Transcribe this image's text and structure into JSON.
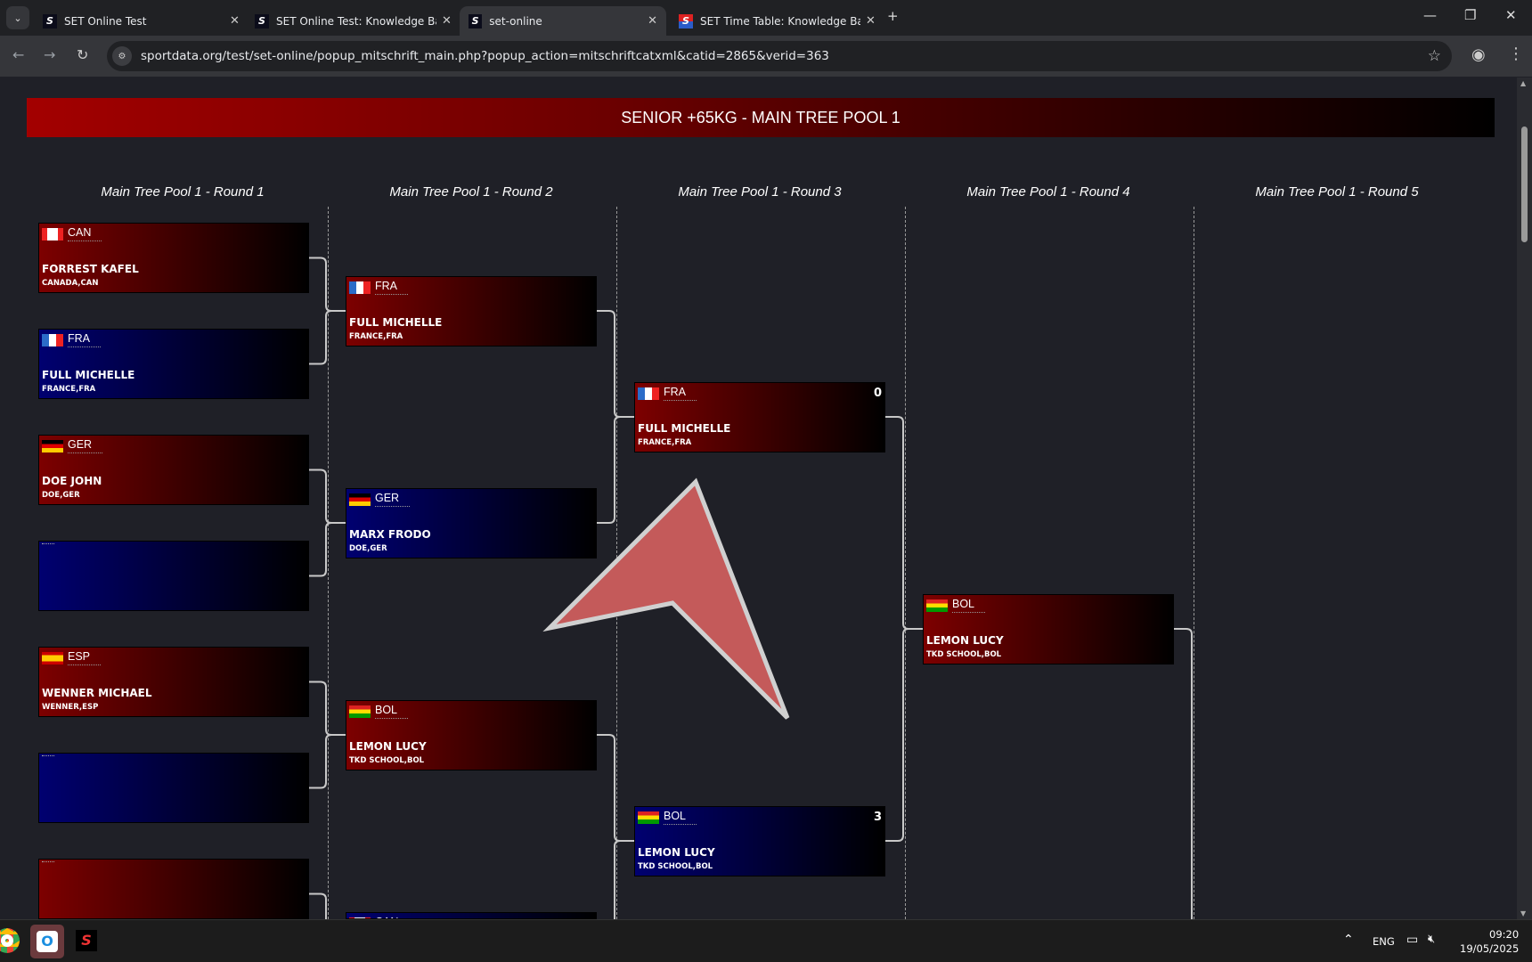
{
  "browser": {
    "tabs": [
      {
        "title": "SET Online Test",
        "active": false
      },
      {
        "title": "SET Online Test: Knowledge Base",
        "active": false
      },
      {
        "title": "set-online",
        "active": true
      },
      {
        "title": "SET Time Table: Knowledge Base",
        "active": false
      }
    ],
    "url": "sportdata.org/test/set-online/popup_mitschrift_main.php?popup_action=mitschriftcatxml&catid=2865&verid=363"
  },
  "page": {
    "title": "SENIOR +65KG - MAIN TREE POOL 1",
    "rounds": [
      "Main Tree Pool 1 - Round 1",
      "Main Tree Pool 1 - Round 2",
      "Main Tree Pool 1 - Round 3",
      "Main Tree Pool 1 - Round 4",
      "Main Tree Pool 1 - Round 5"
    ],
    "colors": {
      "red_corner": "#7d0000",
      "blue_corner": "#000070",
      "background": "#1f2027"
    },
    "matches": [
      [
        {
          "color": "red",
          "code": "CAN",
          "name": "FORREST KAFEL",
          "club": "CANADA,CAN",
          "score": ""
        },
        {
          "color": "blue",
          "code": "FRA",
          "name": "FULL MICHELLE",
          "club": "FRANCE,FRA",
          "score": ""
        },
        {
          "color": "red",
          "code": "GER",
          "name": "DOE JOHN",
          "club": "DOE,GER",
          "score": ""
        },
        {
          "color": "blue",
          "code": "",
          "name": "",
          "club": "",
          "score": ""
        },
        {
          "color": "red",
          "code": "ESP",
          "name": "WENNER MICHAEL",
          "club": "WENNER,ESP",
          "score": ""
        },
        {
          "color": "blue",
          "code": "",
          "name": "",
          "club": "",
          "score": ""
        },
        {
          "color": "red",
          "code": "",
          "name": "",
          "club": "",
          "score": ""
        }
      ],
      [
        {
          "color": "red",
          "code": "FRA",
          "name": "FULL MICHELLE",
          "club": "FRANCE,FRA",
          "score": ""
        },
        {
          "color": "blue",
          "code": "GER",
          "name": "MARX FRODO",
          "club": "DOE,GER",
          "score": ""
        },
        {
          "color": "red",
          "code": "BOL",
          "name": "LEMON LUCY",
          "club": "TKD SCHOOL,BOL",
          "score": ""
        },
        {
          "color": "blue",
          "code": "CAN",
          "name": "",
          "club": "",
          "score": ""
        }
      ],
      [
        {
          "color": "red",
          "code": "FRA",
          "name": "FULL MICHELLE",
          "club": "FRANCE,FRA",
          "score": "0"
        },
        {
          "color": "blue",
          "code": "BOL",
          "name": "LEMON LUCY",
          "club": "TKD SCHOOL,BOL",
          "score": "3"
        }
      ],
      [
        {
          "color": "red",
          "code": "BOL",
          "name": "LEMON LUCY",
          "club": "TKD SCHOOL,BOL",
          "score": ""
        }
      ]
    ]
  },
  "taskbar": {
    "lang": "ENG",
    "time": "09:20",
    "date": "19/05/2025"
  }
}
